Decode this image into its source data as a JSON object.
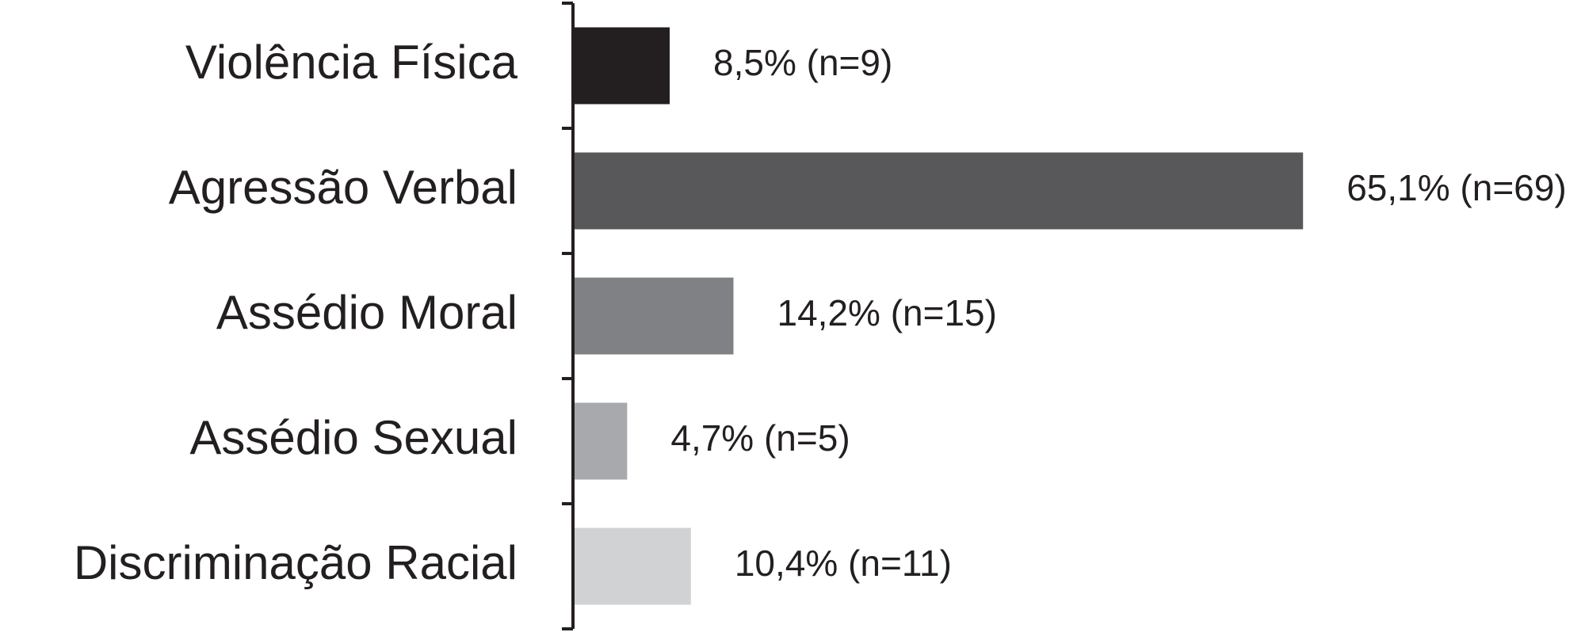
{
  "chart_data": {
    "type": "hbar",
    "categories": [
      "Violência Física",
      "Agressão Verbal",
      "Assédio Moral",
      "Assédio Sexual",
      "Discriminação Racial"
    ],
    "values": [
      8.5,
      65.1,
      14.2,
      4.7,
      10.4
    ],
    "value_labels": [
      "8,5% (n=9)",
      "65,1% (n=69)",
      "14,2% (n=15)",
      "4,7% (n=5)",
      "10,4% (n=11)"
    ],
    "colors": [
      "#231f20",
      "#58585a",
      "#808184",
      "#a7a9ac",
      "#d1d2d4"
    ]
  }
}
